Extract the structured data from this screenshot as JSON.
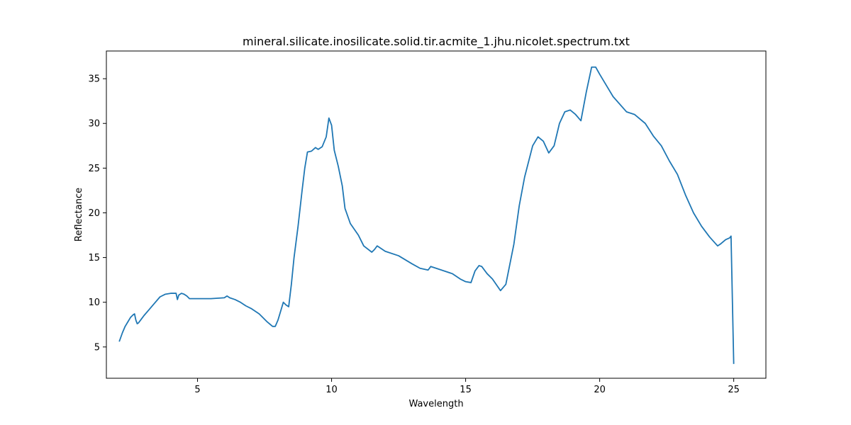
{
  "chart_data": {
    "type": "line",
    "title": "mineral.silicate.inosilicate.solid.tir.acmite_1.jhu.nicolet.spectrum.txt",
    "xlabel": "Wavelength",
    "ylabel": "Reflectance",
    "xlim": [
      1.6,
      26.2
    ],
    "ylim": [
      1.5,
      38.1
    ],
    "xticks": [
      5,
      10,
      15,
      20,
      25
    ],
    "yticks": [
      5,
      10,
      15,
      20,
      25,
      30,
      35
    ],
    "grid": false,
    "line_color": "#1f77b4",
    "series": [
      {
        "x": [
          2.08,
          2.2,
          2.3,
          2.4,
          2.5,
          2.6,
          2.65,
          2.7,
          2.75,
          2.8,
          2.9,
          3.0,
          3.2,
          3.4,
          3.6,
          3.8,
          4.0,
          4.2,
          4.25,
          4.3,
          4.4,
          4.5,
          4.6,
          4.7,
          5.0,
          5.5,
          6.0,
          6.1,
          6.2,
          6.4,
          6.6,
          6.8,
          7.0,
          7.3,
          7.6,
          7.8,
          7.9,
          8.0,
          8.2,
          8.3,
          8.4,
          8.5,
          8.6,
          8.75,
          8.9,
          9.0,
          9.1,
          9.25,
          9.4,
          9.5,
          9.65,
          9.8,
          9.9,
          10.0,
          10.1,
          10.25,
          10.4,
          10.5,
          10.7,
          11.0,
          11.2,
          11.5,
          11.6,
          11.7,
          12.0,
          12.5,
          13.0,
          13.3,
          13.6,
          13.7,
          14.0,
          14.5,
          14.8,
          15.0,
          15.2,
          15.35,
          15.5,
          15.6,
          15.8,
          16.0,
          16.3,
          16.5,
          16.8,
          17.0,
          17.2,
          17.5,
          17.7,
          17.9,
          18.1,
          18.3,
          18.5,
          18.7,
          18.9,
          19.1,
          19.3,
          19.5,
          19.7,
          19.85,
          20.0,
          20.2,
          20.5,
          21.0,
          21.3,
          21.7,
          22.0,
          22.3,
          22.6,
          22.9,
          23.2,
          23.5,
          23.8,
          24.1,
          24.4,
          24.5,
          24.7,
          24.85,
          24.9,
          25.0
        ],
        "y": [
          5.6,
          6.6,
          7.3,
          7.8,
          8.3,
          8.6,
          8.7,
          8.0,
          7.6,
          7.7,
          8.1,
          8.5,
          9.2,
          9.9,
          10.6,
          10.9,
          11.0,
          11.0,
          10.3,
          10.8,
          11.0,
          10.9,
          10.7,
          10.4,
          10.4,
          10.4,
          10.5,
          10.7,
          10.5,
          10.3,
          10.0,
          9.6,
          9.3,
          8.7,
          7.8,
          7.3,
          7.3,
          8.0,
          10.0,
          9.7,
          9.5,
          12.0,
          15.0,
          18.5,
          22.5,
          25.0,
          26.8,
          26.9,
          27.3,
          27.1,
          27.4,
          28.5,
          30.6,
          29.8,
          27.0,
          25.2,
          23.0,
          20.5,
          18.8,
          17.5,
          16.3,
          15.6,
          15.9,
          16.3,
          15.7,
          15.2,
          14.3,
          13.8,
          13.6,
          14.0,
          13.7,
          13.2,
          12.6,
          12.3,
          12.2,
          13.5,
          14.1,
          14.0,
          13.2,
          12.6,
          11.3,
          12.0,
          16.5,
          20.8,
          24.0,
          27.5,
          28.5,
          28.0,
          26.7,
          27.5,
          30.0,
          31.3,
          31.5,
          31.0,
          30.3,
          33.5,
          36.3,
          36.3,
          35.5,
          34.5,
          33.0,
          31.3,
          31.0,
          30.0,
          28.6,
          27.5,
          25.8,
          24.3,
          22.0,
          20.0,
          18.5,
          17.3,
          16.3,
          16.5,
          17.0,
          17.2,
          17.4,
          3.1
        ]
      }
    ]
  }
}
